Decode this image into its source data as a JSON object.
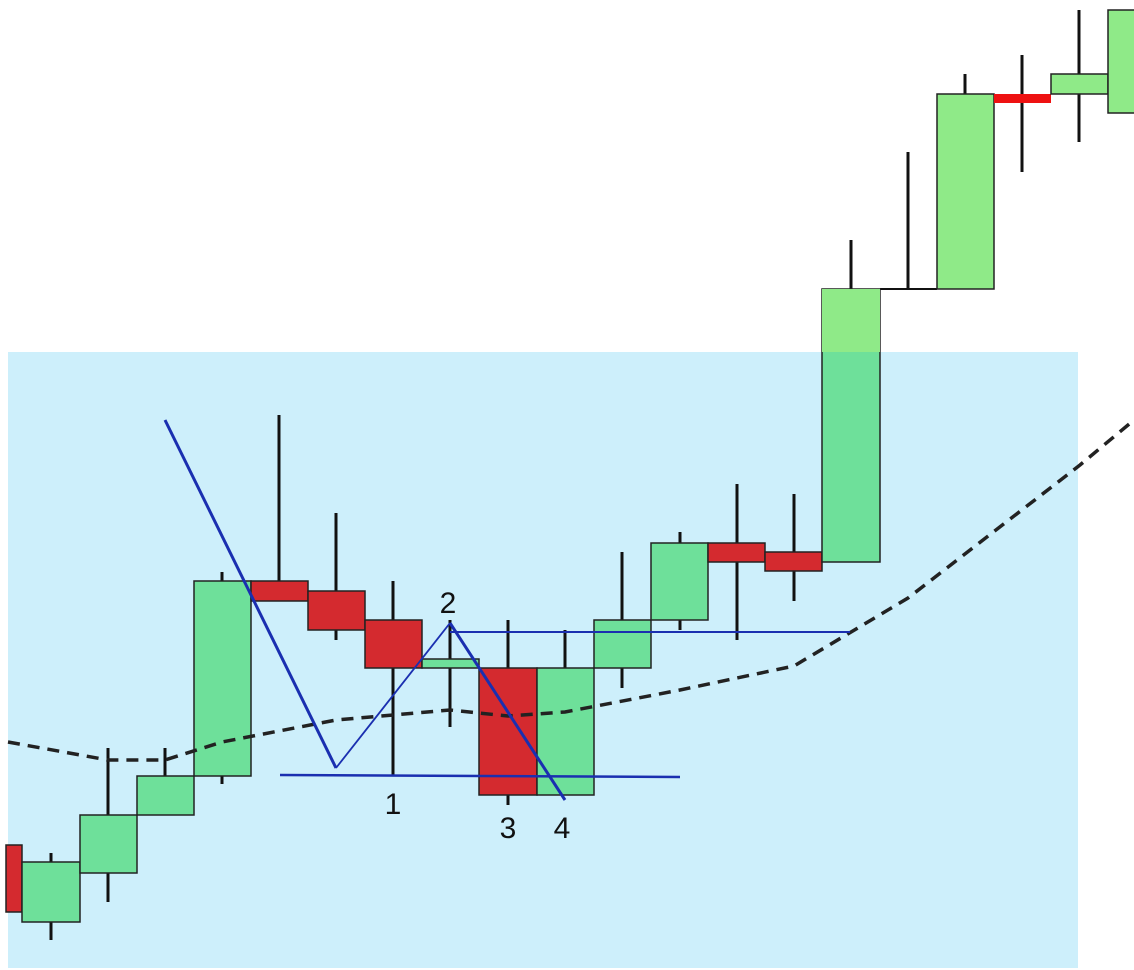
{
  "labels": [
    "1",
    "2",
    "3",
    "4"
  ]
}
